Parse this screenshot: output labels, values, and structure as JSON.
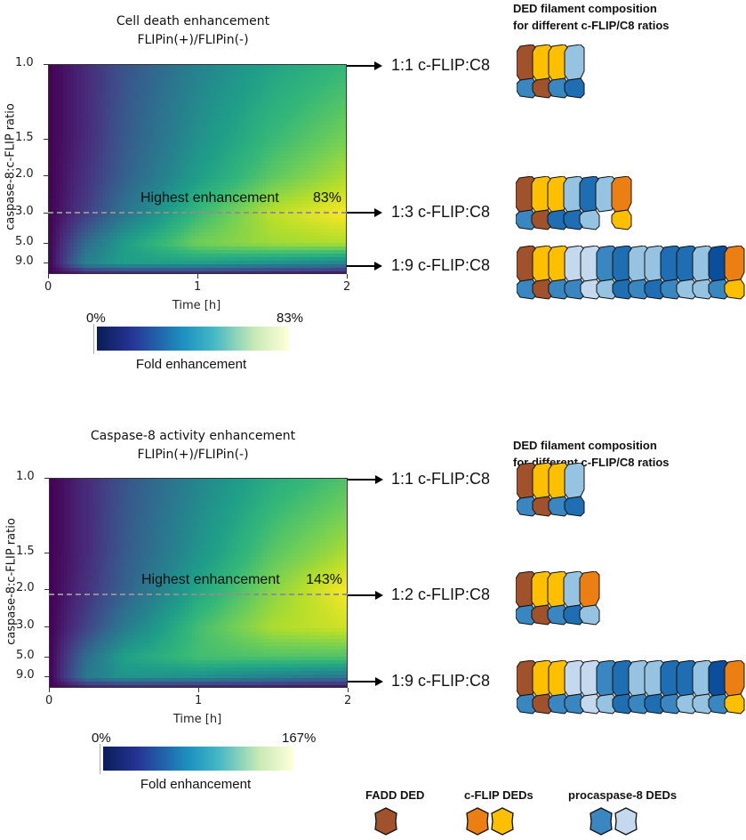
{
  "chart_data": [
    {
      "type": "heatmap",
      "title": "Cell death enhancement",
      "subtitle": "FLIPin(+)/FLIPin(-)",
      "xlabel": "Time [h]",
      "ylabel": "caspase-8:c-FLIP ratio",
      "y_scale": "reciprocal",
      "xlim": [
        0,
        2
      ],
      "ylim": [
        1.0,
        17
      ],
      "xticks": [
        "0",
        "1",
        "2"
      ],
      "yticks": [
        "1.0",
        "1.5",
        "2.0",
        "3.0",
        "5.0",
        "9.0"
      ],
      "colormap": "viridis",
      "x": [
        0,
        0.25,
        0.5,
        1,
        1.5,
        2
      ],
      "y": [
        1,
        1.5,
        2,
        3,
        5,
        9,
        17
      ],
      "values": [
        [
          0,
          10,
          21,
          37,
          48,
          55
        ],
        [
          0,
          10,
          23,
          42,
          56,
          66
        ],
        [
          0,
          12,
          25,
          46,
          62,
          73
        ],
        [
          0,
          15,
          32,
          56,
          75,
          83
        ],
        [
          0,
          29,
          46,
          65,
          71,
          73
        ],
        [
          0,
          37,
          46,
          46,
          42,
          37
        ],
        [
          0,
          4,
          4,
          4,
          2,
          0
        ]
      ],
      "annotation": {
        "label": "Highest enhancement",
        "value": "83%",
        "ratio": 3.0
      },
      "colorbar": {
        "label": "Fold enhancement",
        "min_label": "0%",
        "max_label": "83%",
        "min": 0,
        "max": 83
      }
    },
    {
      "type": "heatmap",
      "title": "Caspase-8 activity enhancement",
      "subtitle": "FLIPin(+)/FLIPin(-)",
      "xlabel": "Time [h]",
      "ylabel": "caspase-8:c-FLIP ratio",
      "y_scale": "reciprocal",
      "xlim": [
        0,
        2
      ],
      "ylim": [
        1.0,
        17
      ],
      "xticks": [
        "0",
        "1",
        "2"
      ],
      "yticks": [
        "1.0",
        "1.5",
        "2.0",
        "3.0",
        "5.0",
        "9.0"
      ],
      "colormap": "viridis",
      "x": [
        0,
        0.25,
        0.5,
        1,
        1.5,
        2
      ],
      "y": [
        1,
        1.5,
        2,
        3,
        5,
        9,
        17
      ],
      "values": [
        [
          0,
          17,
          36,
          64,
          86,
          100
        ],
        [
          0,
          17,
          39,
          72,
          103,
          122
        ],
        [
          0,
          20,
          43,
          82,
          114,
          139
        ],
        [
          0,
          29,
          57,
          97,
          122,
          129
        ],
        [
          0,
          50,
          79,
          97,
          100,
          100
        ],
        [
          0,
          57,
          72,
          69,
          60,
          54
        ],
        [
          0,
          7,
          7,
          4,
          3,
          0
        ]
      ],
      "annotation": {
        "label": "Highest enhancement",
        "value": "143%",
        "ratio": 2.1
      },
      "colorbar": {
        "label": "Fold enhancement",
        "min_label": "0%",
        "max_label": "167%",
        "min": 0,
        "max": 167
      }
    }
  ],
  "filament_panels": [
    {
      "title_line1": "DED filament composition",
      "title_line2": "for different c-FLIP/C8 ratios",
      "rows": [
        {
          "label": "1:1 c-FLIP:C8"
        },
        {
          "label": "1:3 c-FLIP:C8"
        },
        {
          "label": "1:9 c-FLIP:C8"
        }
      ]
    },
    {
      "title_line1": "DED filament composition",
      "title_line2": "for different c-FLIP/C8 ratios",
      "rows": [
        {
          "label": "1:1 c-FLIP:C8"
        },
        {
          "label": "1:2 c-FLIP:C8"
        },
        {
          "label": "1:9 c-FLIP:C8"
        }
      ]
    }
  ],
  "legend": {
    "items": [
      {
        "label": "FADD DED",
        "colors": [
          "#a0522d"
        ]
      },
      {
        "label": "c-FLIP DEDs",
        "colors": [
          "#ec7f14",
          "#fdbf00"
        ]
      },
      {
        "label": "procaspase-8 DEDs",
        "colors": [
          "#3a86c0",
          "#c4d9ee"
        ]
      }
    ]
  }
}
